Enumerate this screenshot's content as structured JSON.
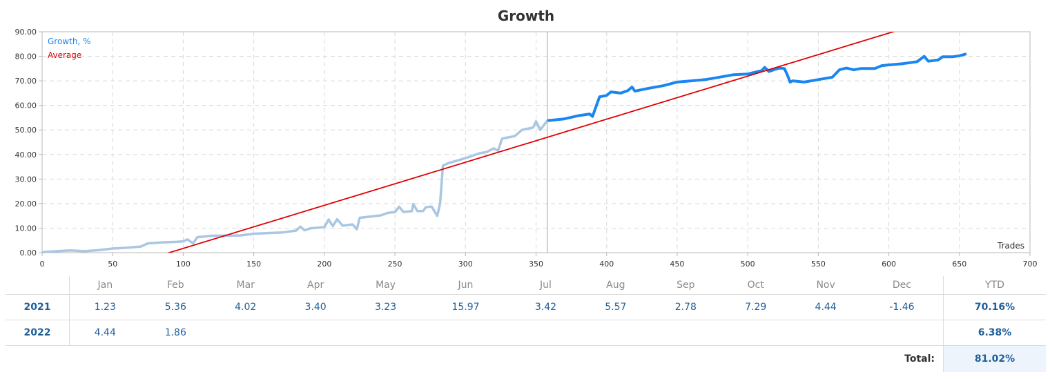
{
  "chart_data": {
    "type": "line",
    "title": "Growth",
    "xlabel": "Trades",
    "ylabel": "",
    "xlim": [
      0,
      700
    ],
    "ylim": [
      0,
      90
    ],
    "xticks": [
      0,
      50,
      100,
      150,
      200,
      250,
      300,
      350,
      400,
      450,
      500,
      550,
      600,
      650,
      700
    ],
    "yticks": [
      "0.00",
      "10.00",
      "20.00",
      "30.00",
      "40.00",
      "50.00",
      "60.00",
      "70.00",
      "80.00",
      "90.00"
    ],
    "grid": true,
    "legend": "top-left",
    "divider_x": 358,
    "series": [
      {
        "name": "Growth, %",
        "color_past": "#a9c6e3",
        "color_current": "#1a86f0",
        "split_x": 358,
        "points": [
          [
            0,
            0.2
          ],
          [
            10,
            0.6
          ],
          [
            20,
            0.9
          ],
          [
            30,
            0.6
          ],
          [
            40,
            1.0
          ],
          [
            50,
            1.7
          ],
          [
            60,
            2.0
          ],
          [
            70,
            2.5
          ],
          [
            75,
            3.8
          ],
          [
            85,
            4.2
          ],
          [
            95,
            4.4
          ],
          [
            100,
            4.6
          ],
          [
            103,
            5.4
          ],
          [
            107,
            3.8
          ],
          [
            110,
            6.3
          ],
          [
            120,
            6.9
          ],
          [
            140,
            7.0
          ],
          [
            150,
            7.7
          ],
          [
            160,
            8.0
          ],
          [
            170,
            8.2
          ],
          [
            180,
            9.0
          ],
          [
            183,
            10.6
          ],
          [
            186,
            9.1
          ],
          [
            190,
            9.9
          ],
          [
            200,
            10.4
          ],
          [
            203,
            13.5
          ],
          [
            206,
            10.8
          ],
          [
            209,
            13.6
          ],
          [
            213,
            11.0
          ],
          [
            220,
            11.5
          ],
          [
            223,
            9.5
          ],
          [
            225,
            14.2
          ],
          [
            240,
            15.2
          ],
          [
            245,
            16.2
          ],
          [
            250,
            16.5
          ],
          [
            253,
            18.7
          ],
          [
            256,
            16.6
          ],
          [
            262,
            16.9
          ],
          [
            263,
            19.8
          ],
          [
            266,
            16.9
          ],
          [
            270,
            17.0
          ],
          [
            272,
            18.5
          ],
          [
            276,
            18.8
          ],
          [
            280,
            15.0
          ],
          [
            282,
            20.0
          ],
          [
            284,
            35.5
          ],
          [
            288,
            36.5
          ],
          [
            300,
            38.5
          ],
          [
            310,
            40.5
          ],
          [
            315,
            41.0
          ],
          [
            320,
            42.5
          ],
          [
            323,
            41.5
          ],
          [
            326,
            46.5
          ],
          [
            335,
            47.5
          ],
          [
            340,
            50.0
          ],
          [
            348,
            51.0
          ],
          [
            350,
            53.5
          ],
          [
            353,
            50.0
          ],
          [
            358,
            53.8
          ],
          [
            370,
            54.5
          ],
          [
            380,
            55.8
          ],
          [
            388,
            56.5
          ],
          [
            390,
            55.5
          ],
          [
            395,
            63.5
          ],
          [
            400,
            64.0
          ],
          [
            403,
            65.5
          ],
          [
            410,
            65.0
          ],
          [
            415,
            66.0
          ],
          [
            418,
            67.5
          ],
          [
            420,
            65.8
          ],
          [
            430,
            67.0
          ],
          [
            440,
            68.0
          ],
          [
            450,
            69.5
          ],
          [
            460,
            70.0
          ],
          [
            470,
            70.5
          ],
          [
            480,
            71.5
          ],
          [
            490,
            72.5
          ],
          [
            500,
            72.8
          ],
          [
            505,
            73.5
          ],
          [
            510,
            74.2
          ],
          [
            512,
            75.5
          ],
          [
            515,
            73.8
          ],
          [
            520,
            74.8
          ],
          [
            523,
            75.2
          ],
          [
            526,
            75.0
          ],
          [
            528,
            72.5
          ],
          [
            530,
            69.5
          ],
          [
            532,
            70.0
          ],
          [
            540,
            69.5
          ],
          [
            550,
            70.5
          ],
          [
            560,
            71.5
          ],
          [
            565,
            74.5
          ],
          [
            570,
            75.2
          ],
          [
            575,
            74.5
          ],
          [
            580,
            75.0
          ],
          [
            590,
            75.0
          ],
          [
            595,
            76.2
          ],
          [
            600,
            76.5
          ],
          [
            610,
            77.0
          ],
          [
            620,
            77.8
          ],
          [
            625,
            80.0
          ],
          [
            628,
            78.0
          ],
          [
            635,
            78.5
          ],
          [
            638,
            79.8
          ],
          [
            645,
            79.8
          ],
          [
            650,
            80.2
          ],
          [
            655,
            81.0
          ]
        ]
      },
      {
        "name": "Average",
        "color": "#e00000",
        "points": [
          [
            0,
            -15.8
          ],
          [
            700,
            107.0
          ]
        ]
      }
    ]
  },
  "table": {
    "months": [
      "Jan",
      "Feb",
      "Mar",
      "Apr",
      "May",
      "Jun",
      "Jul",
      "Aug",
      "Sep",
      "Oct",
      "Nov",
      "Dec"
    ],
    "ytd_label": "YTD",
    "rows": [
      {
        "year": "2021",
        "values": [
          "1.23",
          "5.36",
          "4.02",
          "3.40",
          "3.23",
          "15.97",
          "3.42",
          "5.57",
          "2.78",
          "7.29",
          "4.44",
          "-1.46"
        ],
        "ytd": "70.16%"
      },
      {
        "year": "2022",
        "values": [
          "4.44",
          "1.86",
          "",
          "",
          "",
          "",
          "",
          "",
          "",
          "",
          "",
          ""
        ],
        "ytd": "6.38%"
      }
    ],
    "total_label": "Total:",
    "total_value": "81.02%"
  }
}
